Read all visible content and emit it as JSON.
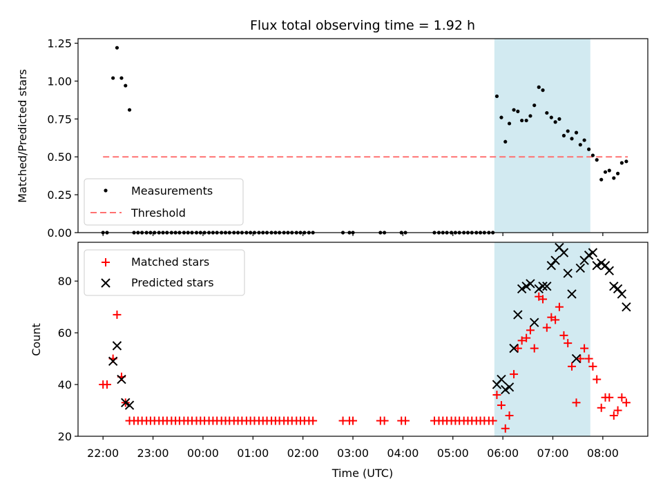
{
  "chart_data": {
    "type": "scatter",
    "title": "Flux total observing time = 1.92 h",
    "xlabel": "Time (UTC)",
    "x_unit": "hours since 22:00",
    "xlim": [
      -0.5,
      10.9
    ],
    "xticks": [
      0,
      1,
      2,
      3,
      4,
      5,
      6,
      7,
      8,
      9,
      10
    ],
    "xtick_labels": [
      "22:00",
      "23:00",
      "00:00",
      "01:00",
      "02:00",
      "03:00",
      "04:00",
      "05:00",
      "06:00",
      "07:00",
      "08:00"
    ],
    "span": {
      "x_start": 7.83,
      "x_end": 9.75,
      "color": "#add8e6"
    },
    "top": {
      "ylabel": "Matched/Predicted stars",
      "ylim": [
        0,
        1.28
      ],
      "yticks": [
        0,
        0.25,
        0.5,
        0.75,
        1.0,
        1.25
      ],
      "ytick_labels": [
        "0.00",
        "0.25",
        "0.50",
        "0.75",
        "1.00",
        "1.25"
      ],
      "legend": [
        {
          "label": "Measurements",
          "marker": "dot",
          "color": "#000000"
        },
        {
          "label": "Threshold",
          "marker": "dashed-line",
          "color": "#ff7070"
        }
      ],
      "threshold": {
        "value": 0.5,
        "x_start": 0,
        "x_end": 10.5
      },
      "measurements": {
        "x": [
          0.0,
          0.08,
          0.2,
          0.28,
          0.37,
          0.45,
          0.53,
          0.62,
          0.7,
          0.78,
          0.87,
          0.95,
          1.03,
          1.12,
          1.2,
          1.28,
          1.37,
          1.45,
          1.53,
          1.62,
          1.7,
          1.78,
          1.87,
          1.95,
          2.03,
          2.12,
          2.2,
          2.28,
          2.37,
          2.45,
          2.53,
          2.62,
          2.7,
          2.78,
          2.87,
          2.95,
          3.03,
          3.12,
          3.2,
          3.28,
          3.37,
          3.45,
          3.53,
          3.62,
          3.7,
          3.78,
          3.87,
          3.95,
          4.03,
          4.12,
          4.2,
          4.8,
          4.93,
          5.0,
          5.55,
          5.63,
          5.97,
          6.05,
          6.63,
          6.72,
          6.8,
          6.88,
          6.97,
          7.05,
          7.13,
          7.22,
          7.3,
          7.38,
          7.47,
          7.55,
          7.63,
          7.72,
          7.8,
          7.88,
          7.97,
          8.05,
          8.13,
          8.22,
          8.3,
          8.38,
          8.47,
          8.55,
          8.63,
          8.72,
          8.8,
          8.88,
          8.97,
          9.05,
          9.13,
          9.22,
          9.3,
          9.38,
          9.47,
          9.55,
          9.63,
          9.72,
          9.8,
          9.88,
          9.97,
          10.05,
          10.13,
          10.22,
          10.3,
          10.38,
          10.47
        ],
        "y": [
          0.0,
          0.0,
          1.02,
          1.22,
          1.02,
          0.97,
          0.81,
          0.0,
          0.0,
          0.0,
          0.0,
          0.0,
          0.0,
          0.0,
          0.0,
          0.0,
          0.0,
          0.0,
          0.0,
          0.0,
          0.0,
          0.0,
          0.0,
          0.0,
          0.0,
          0.0,
          0.0,
          0.0,
          0.0,
          0.0,
          0.0,
          0.0,
          0.0,
          0.0,
          0.0,
          0.0,
          0.0,
          0.0,
          0.0,
          0.0,
          0.0,
          0.0,
          0.0,
          0.0,
          0.0,
          0.0,
          0.0,
          0.0,
          0.0,
          0.0,
          0.0,
          0.0,
          0.0,
          0.0,
          0.0,
          0.0,
          0.0,
          0.0,
          0.0,
          0.0,
          0.0,
          0.0,
          0.0,
          0.0,
          0.0,
          0.0,
          0.0,
          0.0,
          0.0,
          0.0,
          0.0,
          0.0,
          0.0,
          0.9,
          0.76,
          0.6,
          0.72,
          0.81,
          0.8,
          0.74,
          0.74,
          0.77,
          0.84,
          0.96,
          0.94,
          0.79,
          0.76,
          0.73,
          0.75,
          0.64,
          0.67,
          0.62,
          0.66,
          0.58,
          0.61,
          0.55,
          0.51,
          0.48,
          0.35,
          0.4,
          0.41,
          0.36,
          0.39,
          0.46,
          0.47
        ]
      }
    },
    "bottom": {
      "ylabel": "Count",
      "ylim": [
        20,
        95
      ],
      "yticks": [
        20,
        40,
        60,
        80
      ],
      "ytick_labels": [
        "20",
        "40",
        "60",
        "80"
      ],
      "legend": [
        {
          "label": "Matched stars",
          "marker": "plus",
          "color": "#ff0000"
        },
        {
          "label": "Predicted stars",
          "marker": "x",
          "color": "#000000"
        }
      ],
      "matched": {
        "x": [
          0.0,
          0.08,
          0.2,
          0.28,
          0.37,
          0.45,
          0.53,
          0.62,
          0.7,
          0.78,
          0.87,
          0.95,
          1.03,
          1.12,
          1.2,
          1.28,
          1.37,
          1.45,
          1.53,
          1.62,
          1.7,
          1.78,
          1.87,
          1.95,
          2.03,
          2.12,
          2.2,
          2.28,
          2.37,
          2.45,
          2.53,
          2.62,
          2.7,
          2.78,
          2.87,
          2.95,
          3.03,
          3.12,
          3.2,
          3.28,
          3.37,
          3.45,
          3.53,
          3.62,
          3.7,
          3.78,
          3.87,
          3.95,
          4.03,
          4.12,
          4.2,
          4.8,
          4.93,
          5.0,
          5.55,
          5.63,
          5.97,
          6.05,
          6.63,
          6.72,
          6.8,
          6.88,
          6.97,
          7.05,
          7.13,
          7.22,
          7.3,
          7.38,
          7.47,
          7.55,
          7.63,
          7.72,
          7.8,
          7.88,
          7.97,
          8.05,
          8.13,
          8.22,
          8.3,
          8.38,
          8.47,
          8.55,
          8.63,
          8.72,
          8.8,
          8.88,
          8.97,
          9.05,
          9.13,
          9.22,
          9.3,
          9.38,
          9.47,
          9.55,
          9.63,
          9.72,
          9.8,
          9.88,
          9.97,
          10.05,
          10.13,
          10.22,
          10.3,
          10.38,
          10.47
        ],
        "y": [
          40,
          40,
          50,
          67,
          43,
          33,
          26,
          26,
          26,
          26,
          26,
          26,
          26,
          26,
          26,
          26,
          26,
          26,
          26,
          26,
          26,
          26,
          26,
          26,
          26,
          26,
          26,
          26,
          26,
          26,
          26,
          26,
          26,
          26,
          26,
          26,
          26,
          26,
          26,
          26,
          26,
          26,
          26,
          26,
          26,
          26,
          26,
          26,
          26,
          26,
          26,
          26,
          26,
          26,
          26,
          26,
          26,
          26,
          26,
          26,
          26,
          26,
          26,
          26,
          26,
          26,
          26,
          26,
          26,
          26,
          26,
          26,
          26,
          36,
          32,
          23,
          28,
          44,
          54,
          57,
          58,
          61,
          54,
          74,
          73,
          62,
          66,
          65,
          70,
          59,
          56,
          47,
          33,
          50,
          54,
          50,
          47,
          42,
          31,
          35,
          35,
          28,
          30,
          35,
          33
        ]
      },
      "predicted": {
        "x": [
          0.2,
          0.28,
          0.37,
          0.45,
          0.53,
          7.88,
          7.97,
          8.05,
          8.13,
          8.22,
          8.3,
          8.38,
          8.47,
          8.55,
          8.63,
          8.72,
          8.8,
          8.88,
          8.97,
          9.05,
          9.13,
          9.22,
          9.3,
          9.38,
          9.47,
          9.55,
          9.63,
          9.72,
          9.8,
          9.88,
          9.97,
          10.05,
          10.13,
          10.22,
          10.3,
          10.38,
          10.47
        ],
        "y": [
          49,
          55,
          42,
          33,
          32,
          40,
          42,
          38,
          39,
          54,
          67,
          77,
          78,
          79,
          64,
          77,
          78,
          78,
          86,
          88,
          93,
          91,
          83,
          75,
          50,
          85,
          88,
          90,
          91,
          86,
          87,
          86,
          84,
          78,
          77,
          75,
          70
        ]
      }
    }
  }
}
